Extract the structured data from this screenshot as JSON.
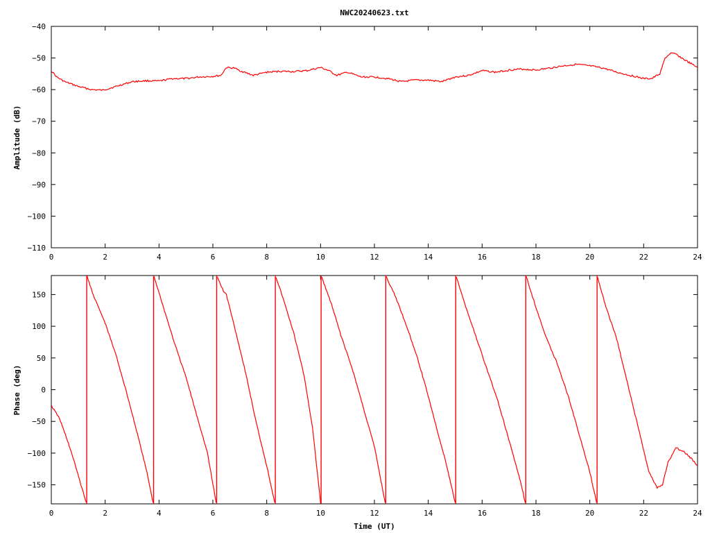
{
  "chart_data": [
    {
      "type": "line",
      "title": "NWC20240623.txt",
      "xlabel": "",
      "ylabel": "Amplitude (dB)",
      "xlim": [
        0,
        24
      ],
      "ylim": [
        -110,
        -40
      ],
      "x_ticks": [
        "0",
        "2",
        "4",
        "6",
        "8",
        "10",
        "12",
        "14",
        "16",
        "18",
        "20",
        "22",
        "24"
      ],
      "y_ticks": [
        "-40",
        "-50",
        "-60",
        "-70",
        "-80",
        "-90",
        "-100",
        "-110"
      ],
      "color": "#ff0000",
      "series": [
        {
          "x": [
            0,
            0.2,
            0.5,
            1.0,
            1.5,
            1.9,
            2.2,
            2.6,
            3.0,
            3.5,
            4.0,
            4.5,
            5.0,
            5.5,
            6.0,
            6.3,
            6.5,
            6.8,
            7.0,
            7.5,
            8.0,
            8.5,
            9.0,
            9.5,
            10.0,
            10.3,
            10.6,
            11.0,
            11.5,
            12.0,
            12.5,
            13.0,
            13.5,
            14.0,
            14.5,
            15.0,
            15.5,
            16.0,
            16.5,
            17.0,
            17.5,
            18.0,
            18.5,
            19.0,
            19.5,
            20.0,
            20.5,
            21.0,
            21.5,
            22.0,
            22.3,
            22.6,
            22.8,
            23.0,
            23.2,
            23.5,
            24.0
          ],
          "y": [
            -54,
            -56,
            -57.5,
            -59,
            -60,
            -60.2,
            -59.5,
            -58.5,
            -57.5,
            -57.2,
            -57.3,
            -56.5,
            -56.5,
            -56,
            -55.8,
            -55.5,
            -53,
            -53.2,
            -54,
            -55.5,
            -54.5,
            -54.2,
            -54.3,
            -54,
            -53,
            -54,
            -55.5,
            -54.5,
            -56,
            -56,
            -56.5,
            -57.5,
            -57,
            -57,
            -57.5,
            -56,
            -55.5,
            -54,
            -54.5,
            -53.8,
            -53.5,
            -53.8,
            -53.2,
            -52.5,
            -52,
            -52.5,
            -53.2,
            -54.5,
            -55.5,
            -56.5,
            -56.5,
            -55,
            -50,
            -48.5,
            -48.8,
            -50.5,
            -53
          ]
        }
      ]
    },
    {
      "type": "line",
      "title": "",
      "xlabel": "Time (UT)",
      "ylabel": "Phase (deg)",
      "xlim": [
        0,
        24
      ],
      "ylim": [
        -180,
        180
      ],
      "x_ticks": [
        "0",
        "2",
        "4",
        "6",
        "8",
        "10",
        "12",
        "14",
        "16",
        "18",
        "20",
        "22",
        "24"
      ],
      "y_ticks": [
        "150",
        "100",
        "50",
        "0",
        "-50",
        "-100",
        "-150"
      ],
      "color": "#ff0000",
      "segments": [
        {
          "x": [
            0,
            0.3,
            0.6,
            0.9,
            1.1,
            1.3
          ],
          "y": [
            -25,
            -45,
            -80,
            -120,
            -150,
            -178
          ]
        },
        {
          "x": [
            1.33,
            1.6,
            2.0,
            2.4,
            2.8,
            3.2,
            3.55,
            3.78
          ],
          "y": [
            178,
            145,
            105,
            55,
            -5,
            -70,
            -130,
            -178
          ]
        },
        {
          "x": [
            3.82,
            4.2,
            4.6,
            5.0,
            5.4,
            5.8,
            6.12
          ],
          "y": [
            178,
            125,
            70,
            20,
            -40,
            -100,
            -178
          ]
        },
        {
          "x": [
            6.16,
            6.4,
            6.5,
            6.8,
            7.2,
            7.6,
            8.0,
            8.3
          ],
          "y": [
            178,
            155,
            150,
            100,
            30,
            -50,
            -120,
            -178
          ]
        },
        {
          "x": [
            8.34,
            8.6,
            9.0,
            9.4,
            9.7,
            10.0
          ],
          "y": [
            178,
            145,
            90,
            20,
            -60,
            -178
          ]
        },
        {
          "x": [
            10.04,
            10.4,
            10.8,
            11.2,
            11.6,
            12.0,
            12.4
          ],
          "y": [
            178,
            135,
            80,
            30,
            -30,
            -90,
            -178
          ]
        },
        {
          "x": [
            12.44,
            12.8,
            13.2,
            13.6,
            14.0,
            14.4,
            14.6,
            15.0
          ],
          "y": [
            178,
            145,
            100,
            50,
            -10,
            -75,
            -105,
            -178
          ]
        },
        {
          "x": [
            15.04,
            15.4,
            15.8,
            16.2,
            16.6,
            17.0,
            17.4,
            17.6
          ],
          "y": [
            178,
            130,
            80,
            30,
            -20,
            -80,
            -140,
            -178
          ]
        },
        {
          "x": [
            17.64,
            18.0,
            18.4,
            18.8,
            19.2,
            19.6,
            20.0,
            20.25
          ],
          "y": [
            178,
            130,
            80,
            40,
            -10,
            -70,
            -130,
            -178
          ]
        },
        {
          "x": [
            20.29,
            20.6,
            21.0,
            21.4,
            21.8,
            22.2,
            22.5,
            22.7,
            22.9,
            23.2,
            23.5,
            23.8,
            24.0
          ],
          "y": [
            178,
            130,
            80,
            10,
            -60,
            -130,
            -155,
            -150,
            -115,
            -92,
            -98,
            -110,
            -120
          ]
        }
      ]
    }
  ]
}
